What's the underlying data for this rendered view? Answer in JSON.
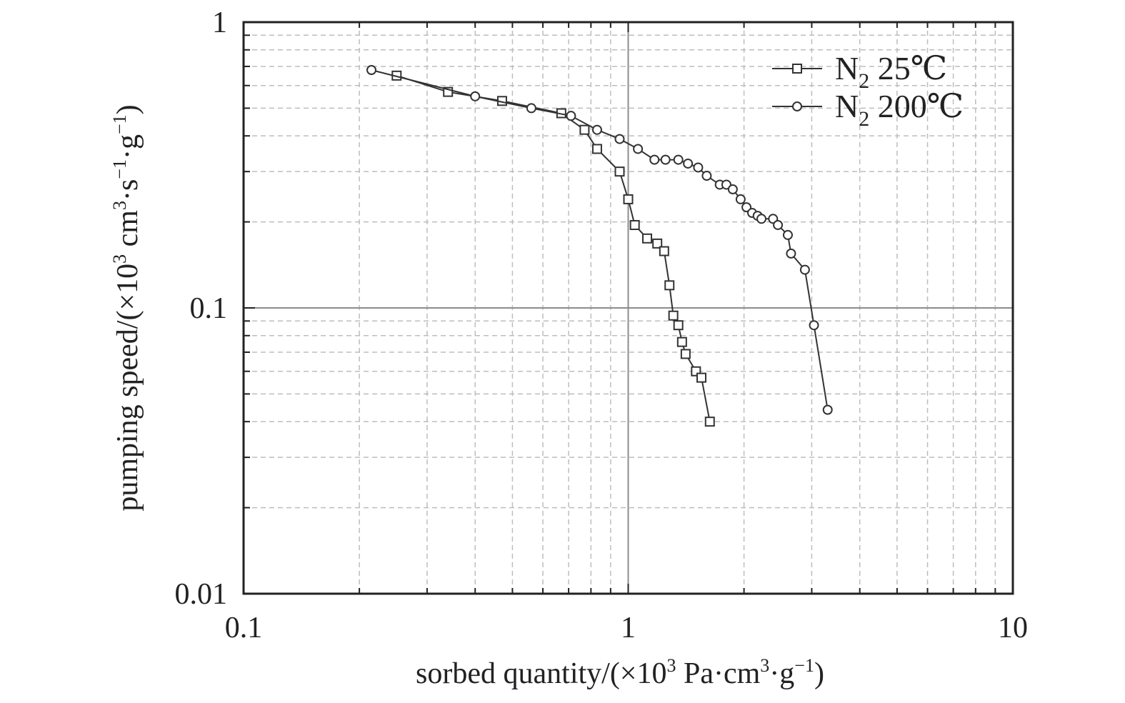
{
  "chart_data": {
    "type": "line",
    "xscale": "log",
    "yscale": "log",
    "xlim": [
      0.1,
      10
    ],
    "ylim": [
      0.01,
      1
    ],
    "x_ticks": [
      {
        "value": 0.1,
        "label": "0.1"
      },
      {
        "value": 1,
        "label": "1"
      },
      {
        "value": 10,
        "label": "10"
      }
    ],
    "y_ticks": [
      {
        "value": 0.01,
        "label": "0.01"
      },
      {
        "value": 0.1,
        "label": "0.1"
      },
      {
        "value": 1,
        "label": "1"
      }
    ],
    "xlabel": {
      "main": "sorbed quantity/(×10",
      "sup": "3",
      "unit": " Pa·cm",
      "unit_sup": "3",
      "tail": "·g",
      "tail_sup": "−1",
      "close": ")"
    },
    "ylabel": {
      "main": "pumping speed/(×10",
      "sup": "3",
      "unit": " cm",
      "unit_sup": "3",
      "mid": "·s",
      "mid_sup": "−1",
      "tail": "·g",
      "tail_sup": "−1",
      "close": ")"
    },
    "grid": true,
    "legend_position": "top-right",
    "series": [
      {
        "name": "N2 25℃",
        "label_base": "N",
        "label_sub": "2",
        "label_rest": " 25℃",
        "marker": "square",
        "points": [
          [
            0.25,
            0.65
          ],
          [
            0.34,
            0.57
          ],
          [
            0.47,
            0.53
          ],
          [
            0.67,
            0.48
          ],
          [
            0.77,
            0.42
          ],
          [
            0.83,
            0.36
          ],
          [
            0.95,
            0.3
          ],
          [
            1.0,
            0.24
          ],
          [
            1.04,
            0.195
          ],
          [
            1.12,
            0.175
          ],
          [
            1.19,
            0.168
          ],
          [
            1.24,
            0.158
          ],
          [
            1.28,
            0.12
          ],
          [
            1.31,
            0.094
          ],
          [
            1.35,
            0.087
          ],
          [
            1.38,
            0.076
          ],
          [
            1.41,
            0.069
          ],
          [
            1.5,
            0.06
          ],
          [
            1.55,
            0.057
          ],
          [
            1.63,
            0.04
          ]
        ]
      },
      {
        "name": "N2 200℃",
        "label_base": "N",
        "label_sub": "2",
        "label_rest": " 200℃",
        "marker": "circle",
        "points": [
          [
            0.215,
            0.68
          ],
          [
            0.4,
            0.55
          ],
          [
            0.56,
            0.5
          ],
          [
            0.71,
            0.47
          ],
          [
            0.83,
            0.42
          ],
          [
            0.95,
            0.39
          ],
          [
            1.06,
            0.36
          ],
          [
            1.17,
            0.33
          ],
          [
            1.25,
            0.33
          ],
          [
            1.35,
            0.33
          ],
          [
            1.43,
            0.32
          ],
          [
            1.52,
            0.31
          ],
          [
            1.6,
            0.29
          ],
          [
            1.73,
            0.27
          ],
          [
            1.8,
            0.27
          ],
          [
            1.87,
            0.26
          ],
          [
            1.96,
            0.24
          ],
          [
            2.03,
            0.225
          ],
          [
            2.1,
            0.215
          ],
          [
            2.17,
            0.21
          ],
          [
            2.22,
            0.205
          ],
          [
            2.38,
            0.205
          ],
          [
            2.45,
            0.195
          ],
          [
            2.6,
            0.18
          ],
          [
            2.65,
            0.155
          ],
          [
            2.88,
            0.136
          ],
          [
            3.04,
            0.087
          ],
          [
            3.3,
            0.044
          ]
        ]
      }
    ]
  }
}
